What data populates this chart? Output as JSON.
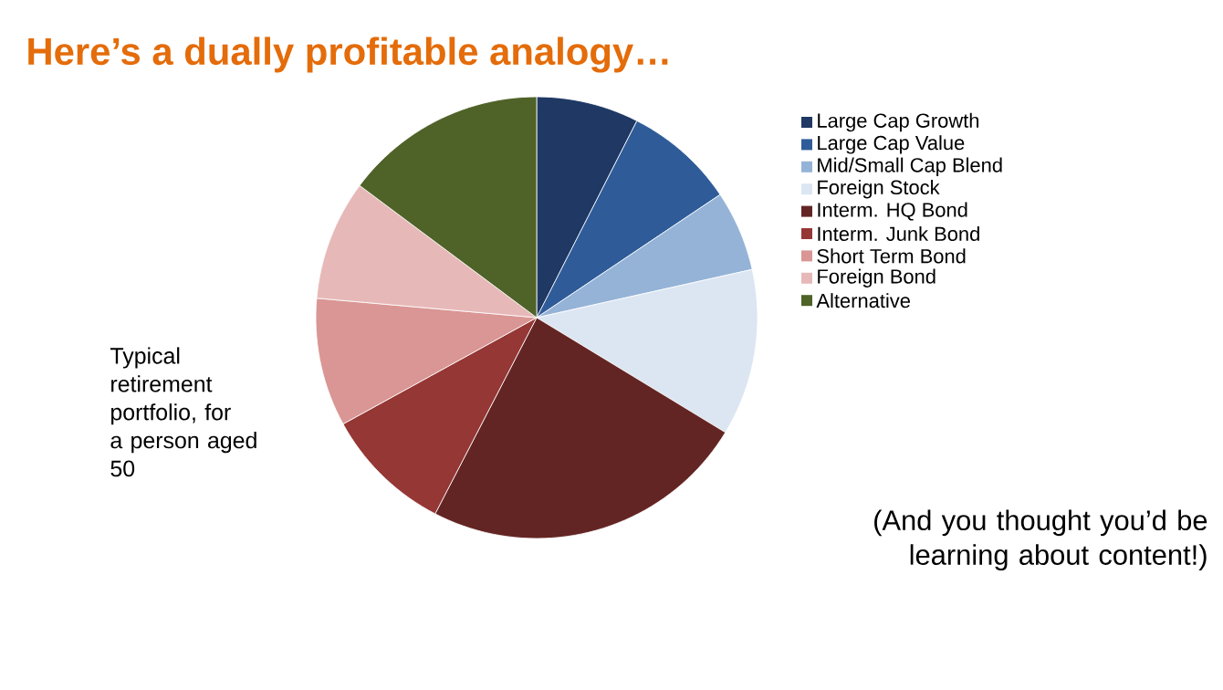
{
  "chart_data": {
    "type": "pie",
    "title": "Here’s a dually profitable analogy…",
    "categories": [
      "Large Cap Growth",
      "Large Cap Value",
      "Mid/Small Cap Blend",
      "Foreign Stock",
      "Interm. HQ Bond",
      "Interm. Junk Bond",
      "Short Term Bond",
      "Foreign Bond",
      "Alternative"
    ],
    "values": [
      7.5,
      8.1,
      5.9,
      12.2,
      23.9,
      9.4,
      9.4,
      8.8,
      14.8
    ],
    "colors": [
      "#1f3864",
      "#2f5c99",
      "#95b3d7",
      "#dce6f2",
      "#632523",
      "#953735",
      "#d99694",
      "#e6b9b8",
      "#4f6228"
    ],
    "legend": "right",
    "annotations": [
      "Typical retirement portfolio, for a person aged 50",
      "(And you thought you’d be learning about content!)"
    ]
  }
}
